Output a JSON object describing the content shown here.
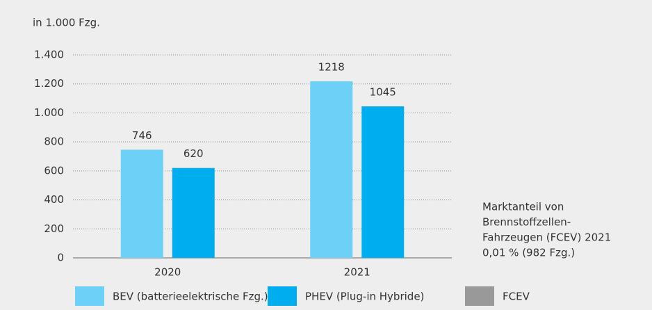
{
  "chart_data": {
    "type": "bar",
    "subtitle": "in 1.000 Fzg.",
    "categories": [
      "2020",
      "2021"
    ],
    "series": [
      {
        "name": "BEV (batterieelektrische Fzg.)",
        "color": "#6dd0f7",
        "values": [
          746,
          1218
        ]
      },
      {
        "name": "PHEV (Plug-in Hybride)",
        "color": "#00aeef",
        "values": [
          620,
          1045
        ]
      },
      {
        "name": "FCEV",
        "color": "#999999",
        "values": [
          null,
          null
        ]
      }
    ],
    "ylim": [
      0,
      1400
    ],
    "yticks": [
      0,
      200,
      400,
      600,
      800,
      {
        "value": 1000,
        "label": "1.000"
      },
      {
        "value": 1200,
        "label": "1.200"
      },
      {
        "value": 1400,
        "label": "1.400"
      }
    ],
    "grid": true,
    "legend": "bottom",
    "annotation": [
      "Marktanteil von",
      "Brennstoffzellen-",
      "Fahrzeugen (FCEV) 2021",
      "0,01 % (982 Fzg.)"
    ]
  }
}
